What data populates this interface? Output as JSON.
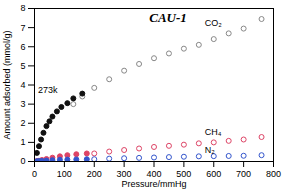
{
  "chart_data": {
    "type": "scatter",
    "title": "CAU-1",
    "x_label": "Pressure/mmHg",
    "y_label": "Amount adsorbed (mmol/g)",
    "xlim": [
      0,
      800
    ],
    "ylim": [
      0,
      8
    ],
    "xticks": [
      0,
      100,
      200,
      300,
      400,
      500,
      600,
      700,
      800
    ],
    "yticks": [
      0,
      1,
      2,
      3,
      4,
      5,
      6,
      7,
      8
    ],
    "grid": false,
    "annotations": [
      "CO₂",
      "CH₄",
      "N₂",
      "273k"
    ],
    "series": [
      {
        "color": "#111111",
        "marker": "filled_circle",
        "x": [
          8,
          15,
          22,
          30,
          40,
          50,
          60,
          75,
          90,
          110,
          130,
          160
        ],
        "values": [
          0.45,
          0.8,
          1.15,
          1.5,
          1.85,
          2.1,
          2.35,
          2.62,
          2.85,
          3.05,
          3.3,
          3.55
        ]
      },
      {
        "color": "#888888",
        "marker": "open_circle",
        "x": [
          130,
          160,
          200,
          250,
          300,
          350,
          400,
          450,
          500,
          550,
          600,
          650,
          700,
          760
        ],
        "values": [
          3.0,
          3.4,
          3.85,
          4.3,
          4.75,
          5.1,
          5.4,
          5.65,
          5.9,
          6.1,
          6.4,
          6.7,
          6.95,
          7.45
        ]
      },
      {
        "color": "#dd4466",
        "marker": "filled_circle",
        "x": [
          8,
          15,
          25,
          40,
          60,
          85,
          110,
          140,
          175
        ],
        "values": [
          0.02,
          0.04,
          0.08,
          0.13,
          0.2,
          0.27,
          0.33,
          0.38,
          0.42
        ]
      },
      {
        "color": "#dd4466",
        "marker": "open_circle",
        "x": [
          200,
          250,
          300,
          350,
          400,
          450,
          500,
          550,
          600,
          650,
          700,
          760
        ],
        "values": [
          0.42,
          0.52,
          0.6,
          0.68,
          0.76,
          0.82,
          0.88,
          0.95,
          1.0,
          1.08,
          1.15,
          1.28
        ]
      },
      {
        "color": "#3355cc",
        "marker": "filled_circle",
        "x": [
          8,
          15,
          25,
          40,
          60,
          85,
          110,
          140,
          175
        ],
        "values": [
          0.01,
          0.02,
          0.03,
          0.05,
          0.07,
          0.09,
          0.1,
          0.11,
          0.12
        ]
      },
      {
        "color": "#3355cc",
        "marker": "open_circle",
        "x": [
          200,
          250,
          300,
          350,
          400,
          450,
          500,
          550,
          600,
          650,
          700,
          760
        ],
        "values": [
          0.12,
          0.15,
          0.17,
          0.19,
          0.21,
          0.23,
          0.25,
          0.27,
          0.28,
          0.29,
          0.3,
          0.33
        ]
      }
    ]
  }
}
